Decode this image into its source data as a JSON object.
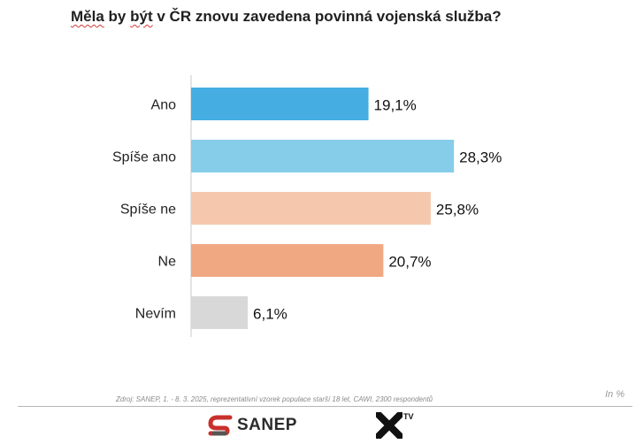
{
  "title": {
    "w1": "Měla",
    "w2": "by",
    "w3": "být",
    "w4": "v",
    "rest": "ČR znovu zavedena povinná vojenská služba?"
  },
  "chart_data": {
    "type": "bar",
    "orientation": "horizontal",
    "title": "Měla by být v ČR znovu zavedena povinná vojenská služba?",
    "categories": [
      "Ano",
      "Spíše ano",
      "Spíše ne",
      "Ne",
      "Nevím"
    ],
    "values": [
      19.1,
      28.3,
      25.8,
      20.7,
      6.1
    ],
    "data_labels": [
      "19,1%",
      "28,3%",
      "25,8%",
      "20,7%",
      "6,1%"
    ],
    "colors": [
      "#45ade2",
      "#86cdea",
      "#f5c8ad",
      "#f0a883",
      "#d8d8d8"
    ],
    "xlim": [
      0,
      30
    ],
    "grid": false,
    "legend": "none",
    "unit": "In %"
  },
  "source": "Zdroj: SANEP, 1. - 8. 3. 2025, reprezentativní vzorek populace starší 18 let, CAWI, 2300 respondentů",
  "footer": {
    "logo1": "SANEP",
    "logo2_sup": "TV",
    "logo2_icon": "x-icon",
    "logo1_icon": "sanep-s-icon"
  }
}
